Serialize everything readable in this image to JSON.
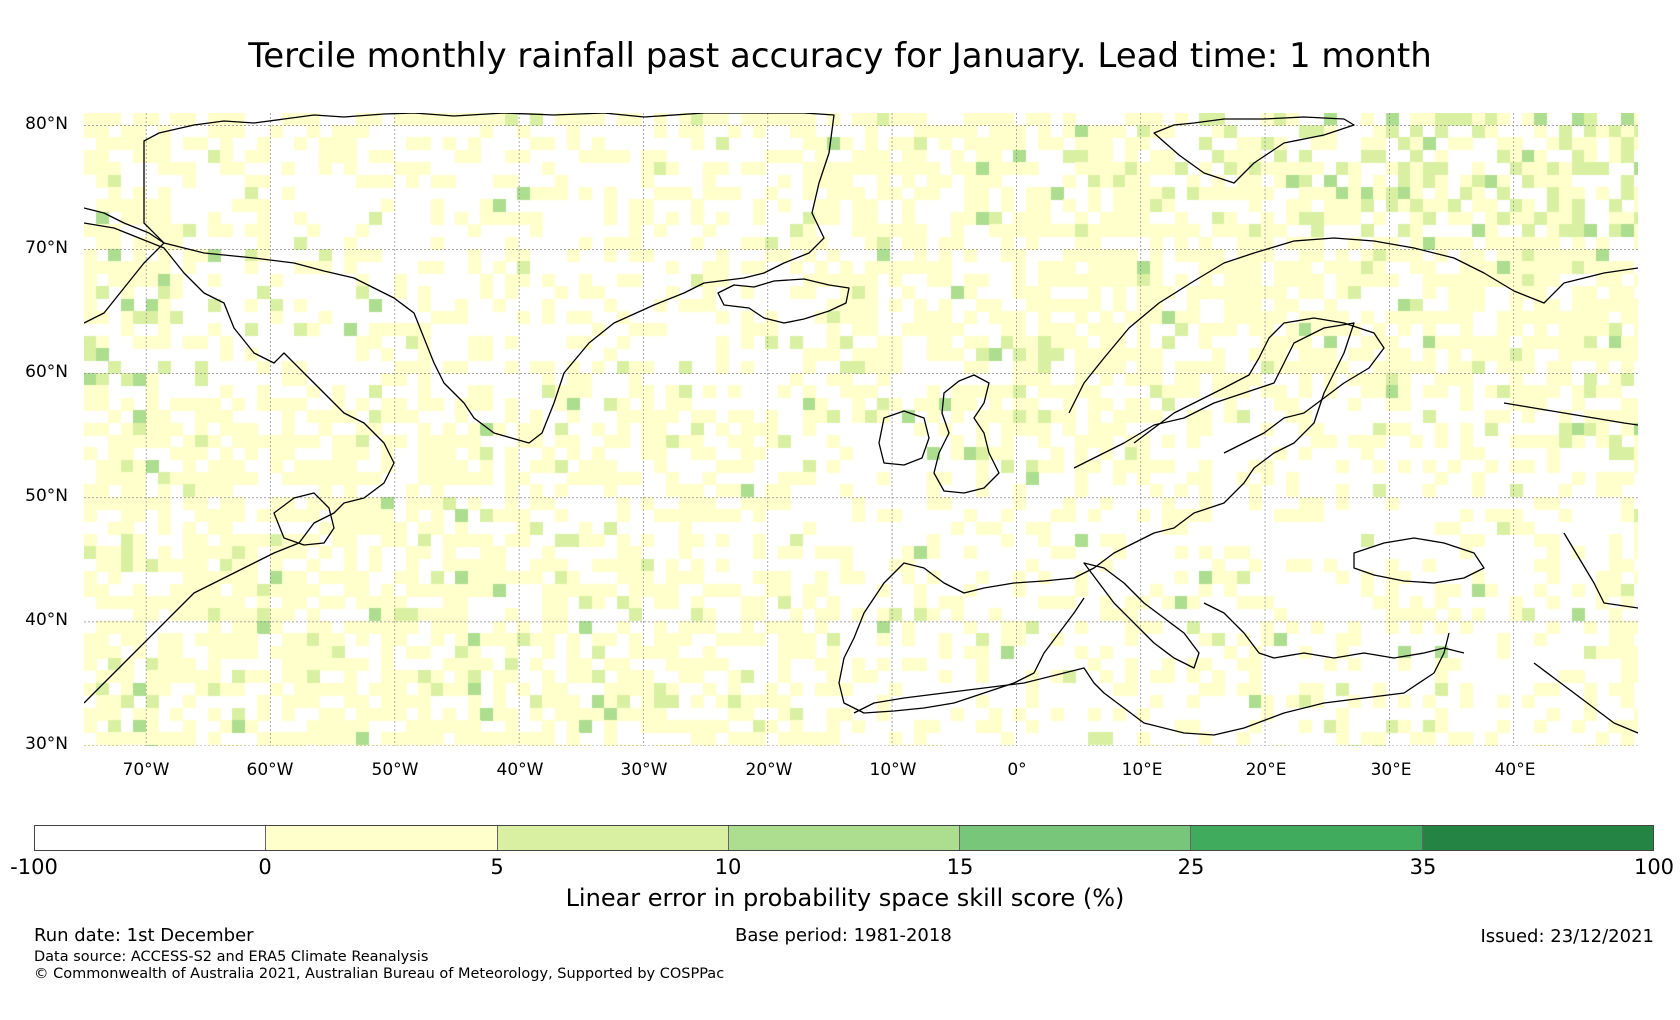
{
  "title": "Tercile monthly rainfall past accuracy for January. Lead time: 1 month",
  "map": {
    "lat_labels": [
      "80°N",
      "70°N",
      "60°N",
      "50°N",
      "40°N",
      "30°N"
    ],
    "lon_labels": [
      "70°W",
      "60°W",
      "50°W",
      "40°W",
      "30°W",
      "20°W",
      "10°W",
      "0°",
      "10°E",
      "20°E",
      "30°E",
      "40°E"
    ],
    "extent": {
      "lon_min": -75,
      "lon_max": 50,
      "lat_min": 30,
      "lat_max": 81
    },
    "gridlines": true
  },
  "colorbar": {
    "ticks": [
      "-100",
      "0",
      "5",
      "10",
      "15",
      "25",
      "35",
      "100"
    ],
    "colors": [
      "#ffffff",
      "#ffffcc",
      "#d9f0a3",
      "#addd8e",
      "#78c679",
      "#41ab5d",
      "#238443"
    ],
    "label": "Linear error in probability space skill score (%)"
  },
  "footer": {
    "run_date": "Run date: 1st December",
    "base_period": "Base period: 1981-2018",
    "issued": "Issued: 23/12/2021",
    "data_source": "Data source: ACCESS-S2 and ERA5 Climate Reanalysis",
    "copyright": "© Commonwealth of Australia 2021, Australian Bureau of Meteorology, Supported by COSPPac"
  }
}
